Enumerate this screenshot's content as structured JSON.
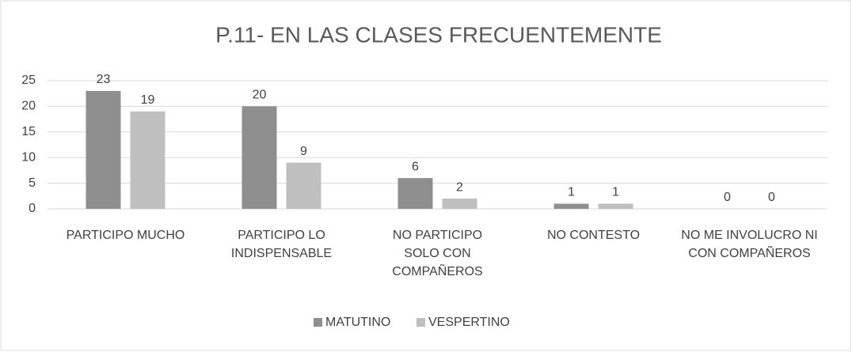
{
  "chart_data": {
    "type": "bar",
    "title": "P.11- EN LAS CLASES FRECUENTEMENTE",
    "categories": [
      "PARTICIPO MUCHO",
      "PARTICIPO LO INDISPENSABLE",
      "NO PARTICIPO SOLO CON COMPAÑEROS",
      "NO CONTESTO",
      "NO ME INVOLUCRO NI CON COMPAÑEROS"
    ],
    "series": [
      {
        "name": "MATUTINO",
        "color": "#8f8f8f",
        "values": [
          23,
          20,
          6,
          1,
          0
        ]
      },
      {
        "name": "VESPERTINO",
        "color": "#bfbfbf",
        "values": [
          19,
          9,
          2,
          1,
          0
        ]
      }
    ],
    "ylim": [
      0,
      25
    ],
    "yticks": [
      0,
      5,
      10,
      15,
      20,
      25
    ],
    "grid": true,
    "legend": "bottom"
  }
}
